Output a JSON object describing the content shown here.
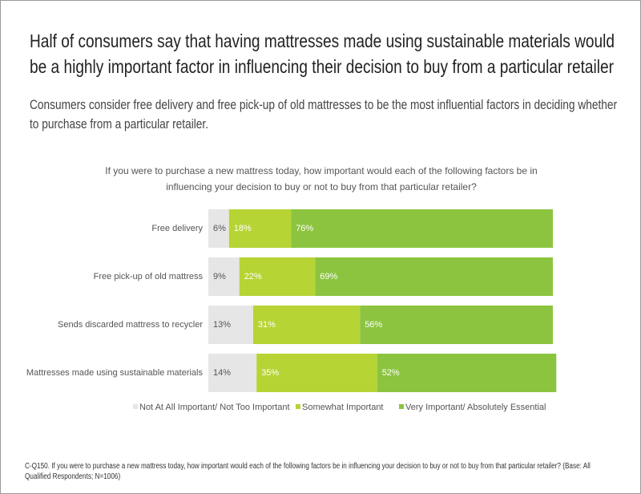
{
  "chart_data": {
    "type": "stacked-barh",
    "title": "Half of consumers say that having mattresses made using sustainable materials would be a highly important factor in influencing their decision to buy from a particular retailer",
    "subtitle": "Consumers consider free delivery and free pick-up of old mattresses to be the most influential factors in deciding whether to purchase from a particular retailer.",
    "question": "If you were to purchase a new mattress today, how important would each of the following factors be in influencing your decision to buy or not to buy from that particular retailer?",
    "categories": [
      "Free delivery",
      "Free pick-up of old mattress",
      "Sends discarded mattress to recycler",
      "Mattresses made using sustainable materials"
    ],
    "series": [
      {
        "name": "Not At All Important/ Not Too Important",
        "color": "#e6e6e6",
        "values": [
          6,
          9,
          13,
          14
        ],
        "value_labels": [
          "6%",
          "9%",
          "13%",
          "14%"
        ]
      },
      {
        "name": "Somewhat Important",
        "color": "#b6d433",
        "values": [
          18,
          22,
          31,
          35
        ],
        "value_labels": [
          "18%",
          "22%",
          "31%",
          "35%"
        ]
      },
      {
        "name": "Very Important/ Absolutely Essential",
        "color": "#8cc43f",
        "values": [
          76,
          69,
          56,
          52
        ],
        "value_labels": [
          "76%",
          "69%",
          "56%",
          "52%"
        ]
      }
    ],
    "xlim": [
      0,
      100
    ],
    "footnote": "C-Q150. If you were to purchase a new mattress today, how important would each of the following factors be in influencing your decision to buy or not to buy from that particular retailer? (Base: All Qualified Respondents; N=1006)"
  }
}
